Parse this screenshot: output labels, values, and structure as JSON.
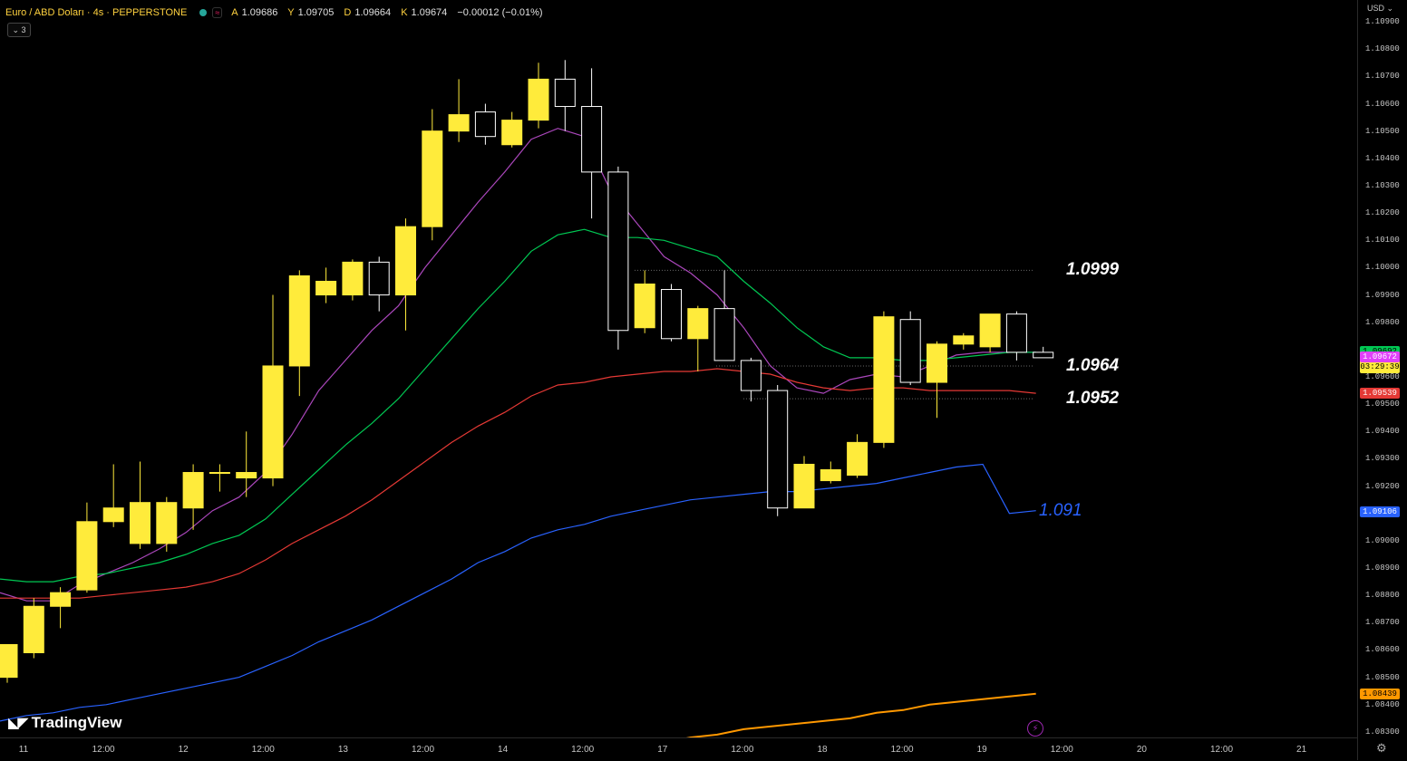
{
  "header": {
    "symbol": "Euro / ABD Doları · 4s · PEPPERSTONE",
    "ohlc": [
      {
        "k": "A",
        "v": "1.09686"
      },
      {
        "k": "Y",
        "v": "1.09705"
      },
      {
        "k": "D",
        "v": "1.09664"
      },
      {
        "k": "K",
        "v": "1.09674"
      },
      {
        "k": "",
        "v": "−0.00012 (−0.01%)"
      }
    ],
    "collapse_label": "⌄ 3"
  },
  "currency": "USD ⌄",
  "brand": {
    "mark": "◣◤",
    "name": "TradingView"
  },
  "level_labels": [
    {
      "text": "1.0999",
      "price": 1.0999,
      "color": "#ffffff"
    },
    {
      "text": "1.0964",
      "price": 1.0964,
      "color": "#ffffff"
    },
    {
      "text": "1.0952",
      "price": 1.0952,
      "color": "#ffffff"
    },
    {
      "text": "1.091",
      "price": 1.0911,
      "color": "#2962ff"
    }
  ],
  "price_badges": [
    {
      "text": "1.09692",
      "price": 1.09692,
      "bg": "#00c853",
      "fg": "#000000"
    },
    {
      "text": "1.09674",
      "sub": "03:29:39",
      "price": 1.09674,
      "bg": "#ffeb3b",
      "fg": "#000000"
    },
    {
      "text": "1.09672",
      "price": 1.09672,
      "bg": "#e040fb",
      "fg": "#ffffff"
    },
    {
      "text": "1.09539",
      "price": 1.09539,
      "bg": "#e53935",
      "fg": "#ffffff"
    },
    {
      "text": "1.09106",
      "price": 1.09106,
      "bg": "#2962ff",
      "fg": "#ffffff"
    },
    {
      "text": "1.08439",
      "price": 1.08439,
      "bg": "#ff9800",
      "fg": "#000000"
    }
  ],
  "chart_data": {
    "type": "candlestick",
    "y_ticks": [
      "1.10900",
      "1.10800",
      "1.10700",
      "1.10600",
      "1.10500",
      "1.10400",
      "1.10300",
      "1.10200",
      "1.10100",
      "1.10000",
      "1.09900",
      "1.09800",
      "1.09700",
      "1.09600",
      "1.09500",
      "1.09400",
      "1.09300",
      "1.09200",
      "1.09100",
      "1.09000",
      "1.08900",
      "1.08800",
      "1.08700",
      "1.08600",
      "1.08500",
      "1.08400",
      "1.08300"
    ],
    "ylim": [
      1.0825,
      1.1095
    ],
    "x_ticks": [
      "11",
      "12:00",
      "12",
      "12:00",
      "13",
      "12:00",
      "14",
      "12:00",
      "17",
      "12:00",
      "18",
      "12:00",
      "19",
      "12:00",
      "20",
      "12:00",
      "21"
    ],
    "candles": [
      {
        "o": 1.085,
        "h": 1.086,
        "l": 1.0848,
        "c": 1.0862
      },
      {
        "o": 1.0859,
        "h": 1.0879,
        "l": 1.0857,
        "c": 1.0876
      },
      {
        "o": 1.0876,
        "h": 1.0883,
        "l": 1.0868,
        "c": 1.0881
      },
      {
        "o": 1.0882,
        "h": 1.0914,
        "l": 1.0881,
        "c": 1.0907
      },
      {
        "o": 1.0907,
        "h": 1.0928,
        "l": 1.0905,
        "c": 1.0912
      },
      {
        "o": 1.0899,
        "h": 1.0929,
        "l": 1.0897,
        "c": 1.0914
      },
      {
        "o": 1.0899,
        "h": 1.0916,
        "l": 1.0896,
        "c": 1.0914
      },
      {
        "o": 1.0912,
        "h": 1.0928,
        "l": 1.0904,
        "c": 1.0925
      },
      {
        "o": 1.0925,
        "h": 1.0928,
        "l": 1.0918,
        "c": 1.0925
      },
      {
        "o": 1.0923,
        "h": 1.094,
        "l": 1.0916,
        "c": 1.0925
      },
      {
        "o": 1.0923,
        "h": 1.099,
        "l": 1.092,
        "c": 1.0964
      },
      {
        "o": 1.0964,
        "h": 1.0999,
        "l": 1.0953,
        "c": 1.0997
      },
      {
        "o": 1.099,
        "h": 1.1,
        "l": 1.0987,
        "c": 1.0995
      },
      {
        "o": 1.099,
        "h": 1.1003,
        "l": 1.0988,
        "c": 1.1002
      },
      {
        "o": 1.1002,
        "h": 1.1004,
        "l": 1.0984,
        "c": 1.099
      },
      {
        "o": 1.099,
        "h": 1.1018,
        "l": 1.0977,
        "c": 1.1015
      },
      {
        "o": 1.1015,
        "h": 1.1058,
        "l": 1.101,
        "c": 1.105
      },
      {
        "o": 1.105,
        "h": 1.1069,
        "l": 1.1046,
        "c": 1.1056
      },
      {
        "o": 1.1057,
        "h": 1.106,
        "l": 1.1045,
        "c": 1.1048
      },
      {
        "o": 1.1045,
        "h": 1.1057,
        "l": 1.1044,
        "c": 1.1054
      },
      {
        "o": 1.1054,
        "h": 1.1075,
        "l": 1.1051,
        "c": 1.1069
      },
      {
        "o": 1.1069,
        "h": 1.1076,
        "l": 1.105,
        "c": 1.1059
      },
      {
        "o": 1.1059,
        "h": 1.1073,
        "l": 1.1018,
        "c": 1.1035
      },
      {
        "o": 1.1035,
        "h": 1.1037,
        "l": 1.097,
        "c": 1.0977
      },
      {
        "o": 1.0978,
        "h": 1.0999,
        "l": 1.0976,
        "c": 1.0994
      },
      {
        "o": 1.0992,
        "h": 1.0994,
        "l": 1.0973,
        "c": 1.0974
      },
      {
        "o": 1.0974,
        "h": 1.0986,
        "l": 1.0962,
        "c": 1.0985
      },
      {
        "o": 1.0985,
        "h": 1.0999,
        "l": 1.0966,
        "c": 1.0966
      },
      {
        "o": 1.0966,
        "h": 1.0967,
        "l": 1.0951,
        "c": 1.0955
      },
      {
        "o": 1.0955,
        "h": 1.0957,
        "l": 1.0909,
        "c": 1.0912
      },
      {
        "o": 1.0912,
        "h": 1.0931,
        "l": 1.0912,
        "c": 1.0928
      },
      {
        "o": 1.0922,
        "h": 1.0929,
        "l": 1.0921,
        "c": 1.0926
      },
      {
        "o": 1.0924,
        "h": 1.0939,
        "l": 1.0923,
        "c": 1.0936
      },
      {
        "o": 1.0936,
        "h": 1.0984,
        "l": 1.0934,
        "c": 1.0982
      },
      {
        "o": 1.0981,
        "h": 1.0984,
        "l": 1.0957,
        "c": 1.0958
      },
      {
        "o": 1.0958,
        "h": 1.0973,
        "l": 1.0945,
        "c": 1.0972
      },
      {
        "o": 1.0972,
        "h": 1.0976,
        "l": 1.097,
        "c": 1.0975
      },
      {
        "o": 1.0971,
        "h": 1.0983,
        "l": 1.0969,
        "c": 1.0983
      },
      {
        "o": 1.0983,
        "h": 1.0984,
        "l": 1.0966,
        "c": 1.0969
      },
      {
        "o": 1.0969,
        "h": 1.0971,
        "l": 1.0967,
        "c": 1.0967
      }
    ],
    "moving_averages": [
      {
        "color": "#ab47bc",
        "values": [
          1.0881,
          1.0878,
          1.0878,
          1.0884,
          1.0888,
          1.0892,
          1.0897,
          1.0903,
          1.0911,
          1.0916,
          1.0925,
          1.0939,
          1.0955,
          1.0966,
          1.0977,
          1.0986,
          1.1,
          1.1012,
          1.1024,
          1.1035,
          1.1047,
          1.1051,
          1.1048,
          1.1028,
          1.1016,
          1.1004,
          1.0998,
          1.099,
          1.0978,
          1.0964,
          1.0956,
          1.0954,
          1.0959,
          1.0961,
          1.096,
          1.0964,
          1.0968,
          1.0969,
          1.0969,
          1.0969
        ]
      },
      {
        "color": "#00c853",
        "values": [
          1.0886,
          1.0885,
          1.0885,
          1.0887,
          1.0888,
          1.089,
          1.0892,
          1.0895,
          1.0899,
          1.0902,
          1.0908,
          1.0917,
          1.0926,
          1.0935,
          1.0943,
          1.0952,
          1.0963,
          1.0974,
          1.0985,
          1.0995,
          1.1006,
          1.1012,
          1.1014,
          1.1011,
          1.1011,
          1.101,
          1.1007,
          1.1004,
          1.0995,
          1.0987,
          1.0978,
          1.0971,
          1.0967,
          1.0967,
          1.0966,
          1.0966,
          1.0967,
          1.0968,
          1.0969,
          1.0969
        ]
      },
      {
        "color": "#e53935",
        "values": [
          1.0879,
          1.0879,
          1.0879,
          1.0879,
          1.088,
          1.0881,
          1.0882,
          1.0883,
          1.0885,
          1.0888,
          1.0893,
          1.0899,
          1.0904,
          1.0909,
          1.0915,
          1.0922,
          1.0929,
          1.0936,
          1.0942,
          1.0947,
          1.0953,
          1.0957,
          1.0958,
          1.096,
          1.0961,
          1.0962,
          1.0962,
          1.0963,
          1.0962,
          1.0961,
          1.0958,
          1.0956,
          1.0955,
          1.0956,
          1.0956,
          1.0955,
          1.0955,
          1.0955,
          1.0955,
          1.0954
        ]
      },
      {
        "color": "#2962ff",
        "values": [
          1.0834,
          1.0836,
          1.0837,
          1.0839,
          1.084,
          1.0842,
          1.0844,
          1.0846,
          1.0848,
          1.085,
          1.0854,
          1.0858,
          1.0863,
          1.0867,
          1.0871,
          1.0876,
          1.0881,
          1.0886,
          1.0892,
          1.0896,
          1.0901,
          1.0904,
          1.0906,
          1.0909,
          1.0911,
          1.0913,
          1.0915,
          1.0916,
          1.0917,
          1.0918,
          1.0918,
          1.0919,
          1.092,
          1.0921,
          1.0923,
          1.0925,
          1.0927,
          1.0928,
          1.091,
          1.0911
        ]
      },
      {
        "color": "#ff9800",
        "values": [
          null,
          null,
          null,
          null,
          null,
          null,
          null,
          null,
          null,
          null,
          null,
          null,
          null,
          null,
          null,
          null,
          null,
          null,
          null,
          null,
          null,
          null,
          null,
          null,
          null,
          1.0826,
          1.0828,
          1.0829,
          1.0831,
          1.0832,
          1.0833,
          1.0834,
          1.0835,
          1.0837,
          1.0838,
          1.084,
          1.0841,
          1.0842,
          1.0843,
          1.0844
        ]
      }
    ]
  }
}
